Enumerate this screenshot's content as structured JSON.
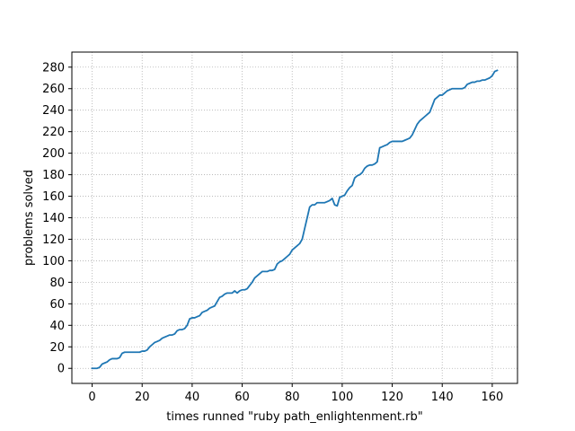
{
  "chart_data": {
    "type": "line",
    "title": "",
    "xlabel": "times runned \"ruby path_enlightenment.rb\"",
    "ylabel": "problems solved",
    "xlim": [
      -8.1,
      170.1
    ],
    "ylim": [
      -14,
      294
    ],
    "xticks": [
      0,
      20,
      40,
      60,
      80,
      100,
      120,
      140,
      160
    ],
    "yticks": [
      0,
      20,
      40,
      60,
      80,
      100,
      120,
      140,
      160,
      180,
      200,
      220,
      240,
      260,
      280
    ],
    "grid": true,
    "line_color": "#1f77b4",
    "series": [
      {
        "x": [
          0,
          2,
          3,
          4,
          5,
          6,
          7,
          8,
          10,
          11,
          12,
          13,
          14,
          16,
          18,
          19,
          20,
          21,
          22,
          23,
          24,
          25,
          26,
          27,
          28,
          29,
          30,
          31,
          32,
          33,
          34,
          35,
          36,
          37,
          38,
          39,
          40,
          41,
          42,
          43,
          44,
          45,
          46,
          47,
          48,
          49,
          50,
          51,
          52,
          53,
          54,
          55,
          56,
          57,
          58,
          59,
          60,
          61,
          62,
          63,
          64,
          65,
          66,
          67,
          68,
          69,
          70,
          71,
          72,
          73,
          74,
          75,
          76,
          77,
          78,
          79,
          80,
          81,
          82,
          83,
          84,
          85,
          86,
          87,
          88,
          89,
          90,
          91,
          92,
          93,
          94,
          95,
          96,
          97,
          98,
          99,
          100,
          101,
          102,
          103,
          104,
          105,
          106,
          107,
          108,
          109,
          110,
          111,
          112,
          113,
          114,
          115,
          116,
          117,
          118,
          119,
          120,
          121,
          122,
          123,
          124,
          125,
          126,
          127,
          128,
          129,
          130,
          131,
          132,
          133,
          134,
          135,
          136,
          137,
          138,
          139,
          140,
          141,
          142,
          143,
          144,
          145,
          146,
          147,
          148,
          149,
          150,
          151,
          152,
          153,
          154,
          155,
          156,
          157,
          158,
          159,
          160,
          161,
          162
        ],
        "y": [
          0,
          0,
          1,
          4,
          5,
          6,
          8,
          9,
          9,
          10,
          14,
          15,
          15,
          15,
          15,
          15,
          16,
          16,
          17,
          20,
          22,
          24,
          25,
          26,
          28,
          29,
          30,
          31,
          31,
          32,
          35,
          36,
          36,
          37,
          40,
          46,
          47,
          47,
          48,
          49,
          52,
          53,
          54,
          56,
          57,
          58,
          62,
          66,
          67,
          69,
          70,
          70,
          70,
          72,
          70,
          72,
          73,
          73,
          74,
          77,
          80,
          84,
          86,
          88,
          90,
          90,
          90,
          91,
          91,
          92,
          97,
          99,
          100,
          102,
          104,
          106,
          110,
          112,
          114,
          116,
          120,
          130,
          140,
          150,
          152,
          152,
          154,
          154,
          154,
          154,
          155,
          156,
          158,
          152,
          151,
          159,
          160,
          161,
          165,
          168,
          170,
          177,
          179,
          180,
          182,
          186,
          188,
          189,
          189,
          190,
          192,
          205,
          206,
          207,
          208,
          210,
          211,
          211,
          211,
          211,
          211,
          212,
          213,
          214,
          217,
          222,
          227,
          230,
          232,
          234,
          236,
          238,
          244,
          250,
          252,
          254,
          254,
          256,
          258,
          259,
          260,
          260,
          260,
          260,
          260,
          261,
          264,
          265,
          266,
          266,
          267,
          267,
          268,
          268,
          269,
          270,
          272,
          276,
          277
        ]
      }
    ]
  }
}
